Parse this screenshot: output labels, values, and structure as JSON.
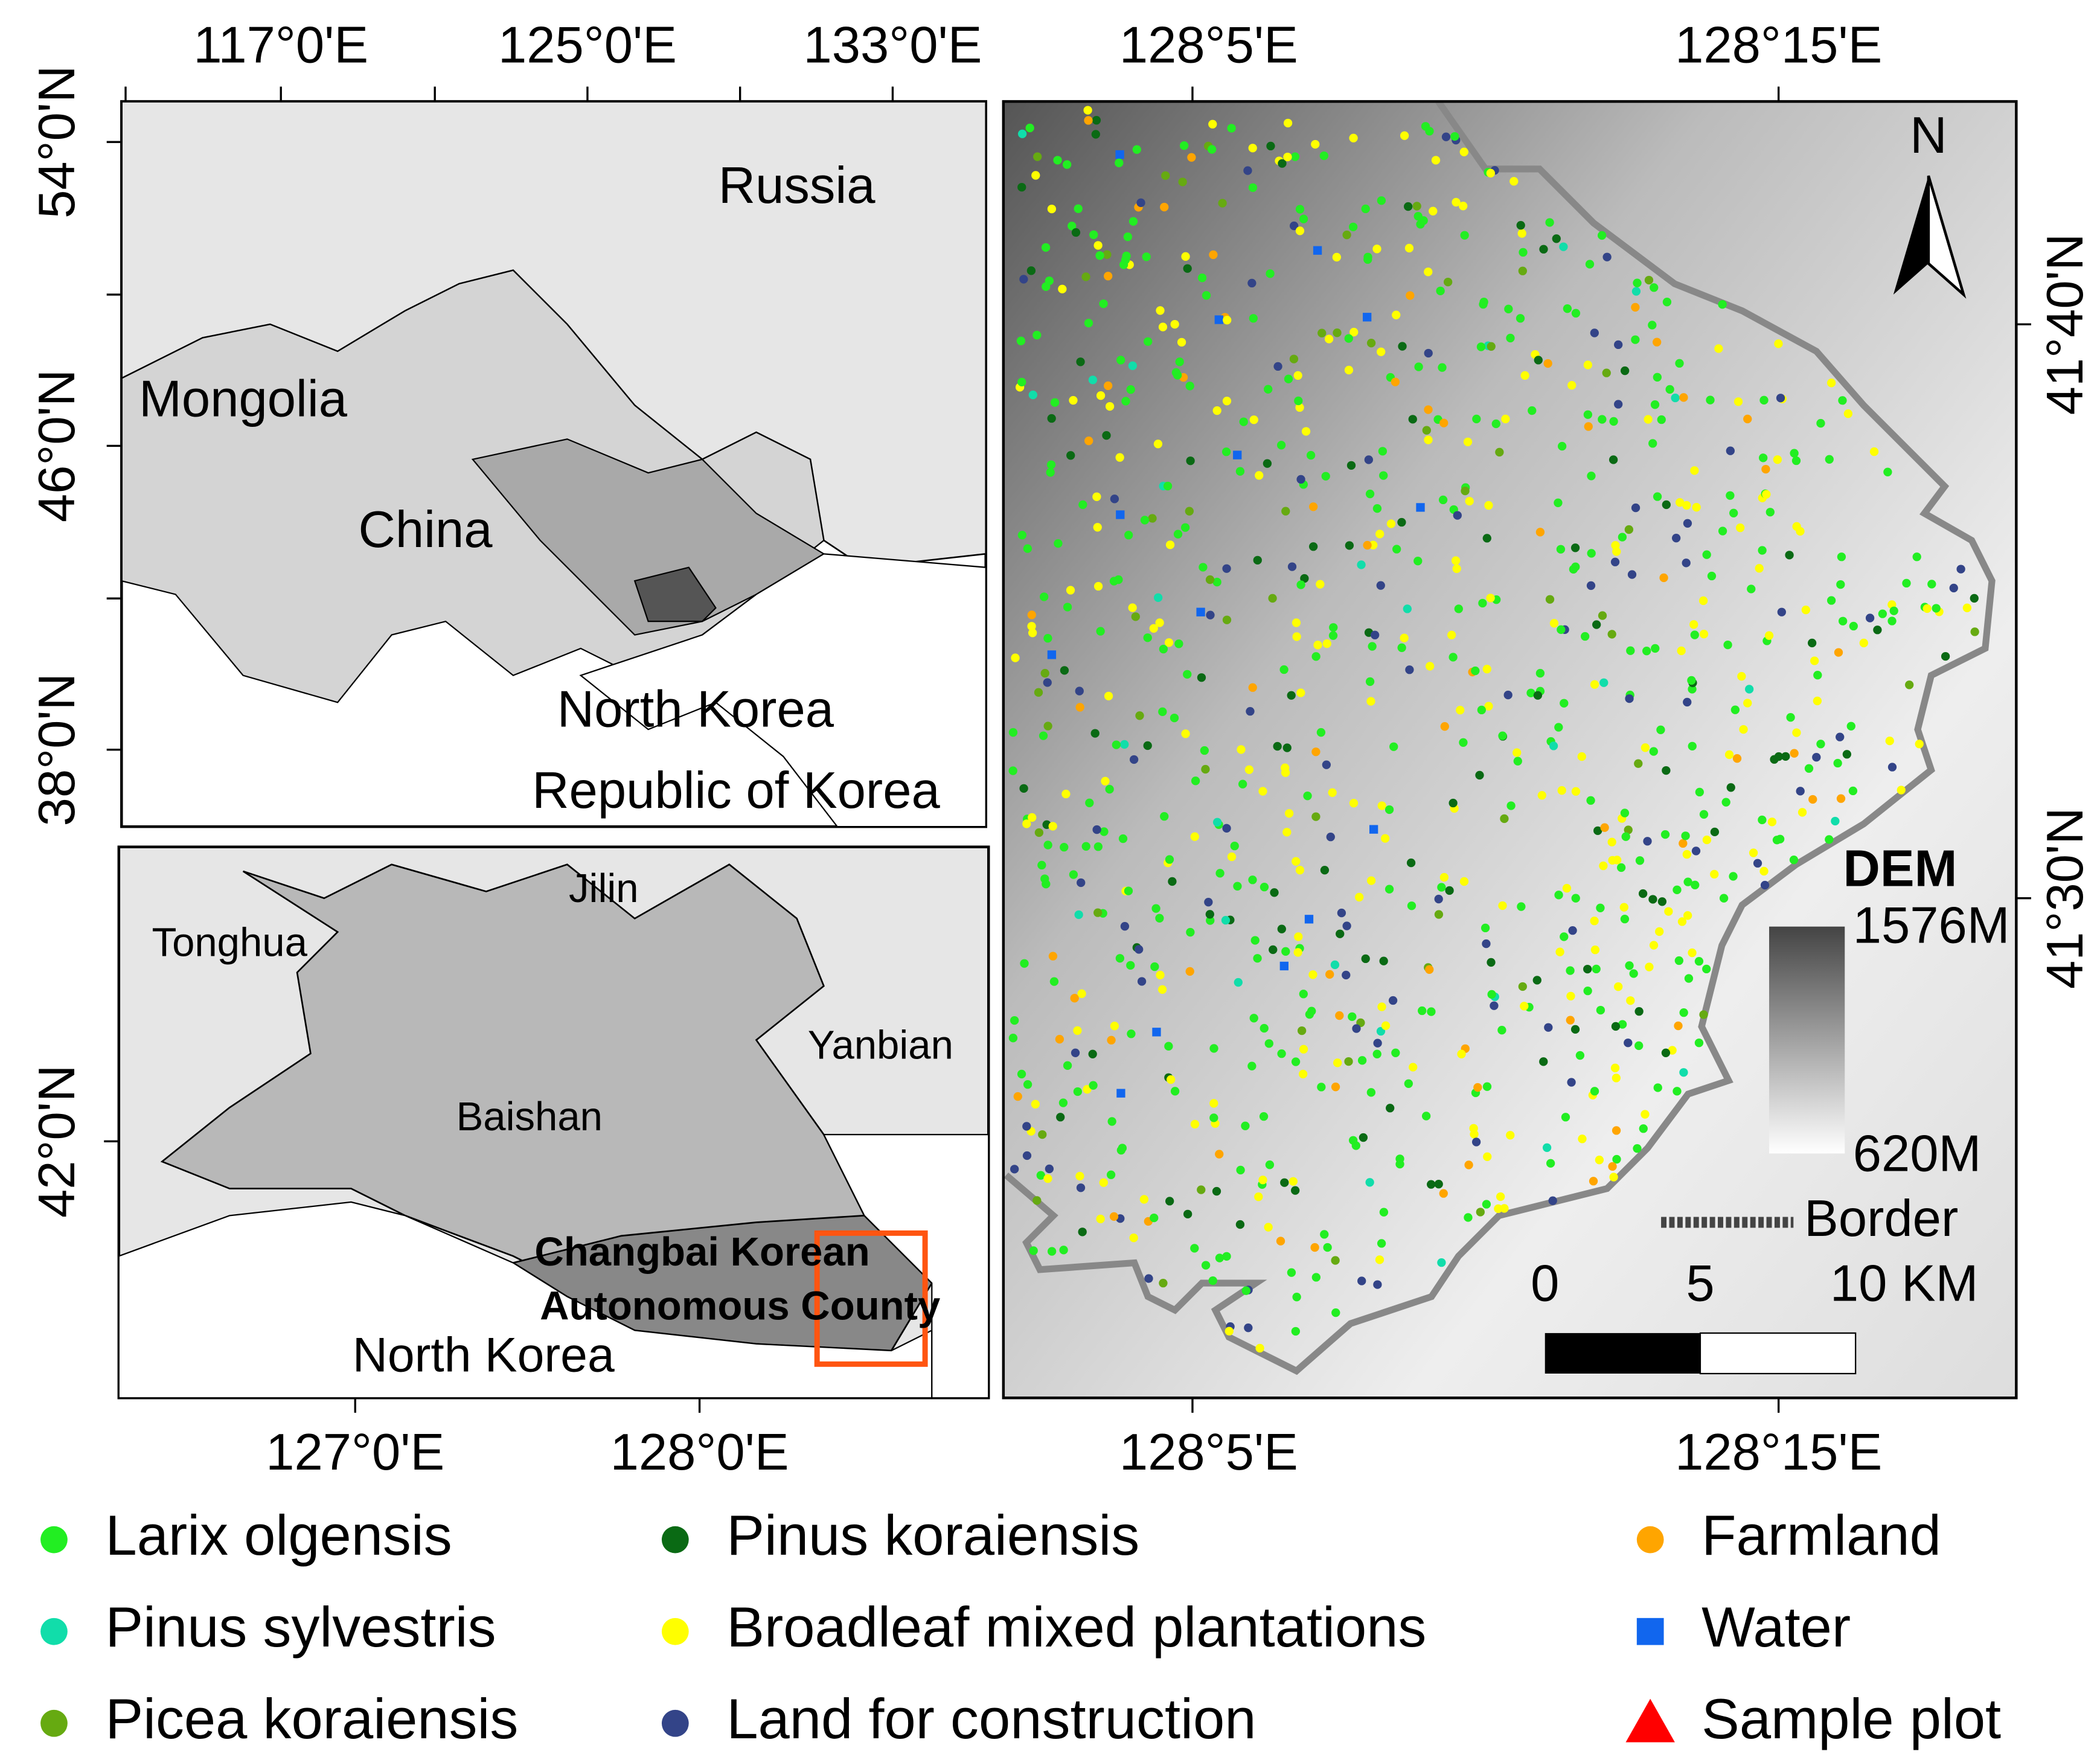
{
  "overview_map": {
    "top_axis_labels": [
      "117°0'E",
      "125°0'E",
      "133°0'E"
    ],
    "left_axis_labels": [
      "54°0'N",
      "46°0'N",
      "38°0'N"
    ],
    "labels": [
      "Russia",
      "Mongolia",
      "China",
      "North Korea",
      "Republic of Korea"
    ]
  },
  "region_map": {
    "left_axis_labels": [
      "42°0'N"
    ],
    "bottom_axis_labels": [
      "127°0'E",
      "128°0'E"
    ],
    "labels": [
      "Jilin",
      "Tonghua",
      "Yanbian",
      "Baishan",
      "North Korea"
    ],
    "county_label": [
      "Changbai Korean",
      "Autonomous County"
    ]
  },
  "study_area_map": {
    "top_axis_labels": [
      "128°5'E",
      "128°15'E"
    ],
    "bottom_axis_labels": [
      "128°5'E",
      "128°15'E"
    ],
    "right_axis_labels": [
      "41°40'N",
      "41°30'N"
    ],
    "north_arrow": "N",
    "dem": {
      "title": "DEM",
      "max": "1576M",
      "min": "620M"
    },
    "border_label": "Border",
    "scale_bar": [
      "0",
      "5",
      "10 KM"
    ]
  },
  "legend": [
    {
      "label": "Larix olgensis",
      "color": "#22ee22",
      "shape": "circle"
    },
    {
      "label": "Pinus sylvestris",
      "color": "#11ddaa",
      "shape": "circle"
    },
    {
      "label": "Picea koraiensis",
      "color": "#66aa11",
      "shape": "circle"
    },
    {
      "label": "Pinus koraiensis",
      "color": "#0a6a14",
      "shape": "circle"
    },
    {
      "label": "Broadleaf mixed plantations",
      "color": "#ffff00",
      "shape": "circle"
    },
    {
      "label": "Land for construction",
      "color": "#334488",
      "shape": "circle"
    },
    {
      "label": "Farmland",
      "color": "#ffa500",
      "shape": "circle"
    },
    {
      "label": "Water",
      "color": "#1166ee",
      "shape": "square"
    },
    {
      "label": "Sample plot",
      "color": "#ff0000",
      "shape": "triangle"
    }
  ]
}
